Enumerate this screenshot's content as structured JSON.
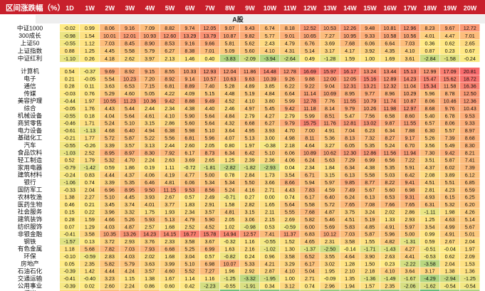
{
  "chart_data": {
    "type": "heatmap",
    "corner_label": "区间涨跌幅（%）",
    "section_label": "A股",
    "columns": [
      "1D",
      "1W",
      "2W",
      "3W",
      "4W",
      "5W",
      "6W",
      "7W",
      "8W",
      "9W",
      "10W",
      "11W",
      "12W",
      "13W",
      "14W",
      "15W",
      "16W",
      "17W",
      "18W",
      "19W",
      "20W"
    ],
    "colors": {
      "header_bg": "#c8202c",
      "header_text": "#ffffff",
      "section_bg": "#eeeeee",
      "low": "#63be7b",
      "mid": "#ffeb84",
      "high": "#f8696b"
    },
    "color_scale": [
      -8,
      0,
      20
    ],
    "index_rows": [
      {
        "name": "中证1000",
        "values": [
          -0.02,
          0.99,
          8.06,
          9.16,
          7.09,
          8.82,
          9.74,
          12.05,
          9.07,
          9.43,
          6.74,
          8.18,
          12.52,
          10.53,
          12.26,
          9.48,
          10.81,
          12.96,
          8.23,
          9.67,
          12.72
        ]
      },
      {
        "name": "300成长",
        "values": [
          -0.98,
          1.54,
          10.01,
          12.01,
          10.93,
          12.6,
          13.29,
          13.79,
          10.87,
          9.82,
          5.77,
          9.01,
          10.65,
          7.27,
          10.95,
          9.33,
          10.58,
          10.56,
          4.01,
          4.47,
          7.01
        ]
      },
      {
        "name": "上证50",
        "values": [
          -0.55,
          1.12,
          7.03,
          8.45,
          8.9,
          8.53,
          9.16,
          9.66,
          5.81,
          5.62,
          2.43,
          4.79,
          6.76,
          3.69,
          7.68,
          6.06,
          6.64,
          7.03,
          0.36,
          0.62,
          2.65
        ]
      },
      {
        "name": "上证指数",
        "values": [
          0.88,
          1.25,
          4.45,
          5.58,
          5.79,
          6.27,
          8.38,
          7.01,
          5.09,
          5.6,
          4.1,
          4.31,
          5.14,
          3.17,
          4.17,
          3.92,
          4.35,
          4.1,
          0.87,
          0.23,
          0.67
        ]
      },
      {
        "name": "中证红利",
        "values": [
          -1.1,
          0.26,
          4.18,
          2.62,
          3.97,
          2.13,
          1.46,
          0.4,
          -3.83,
          -2.09,
          -3.94,
          -2.64,
          0.49,
          -1.28,
          1.59,
          1.0,
          1.69,
          3.61,
          -2.84,
          -1.58,
          -0.24
        ]
      }
    ],
    "industry_rows": [
      {
        "name": "计算机",
        "values": [
          0.54,
          -0.37,
          9.69,
          8.92,
          9.15,
          8.55,
          10.33,
          12.93,
          12.04,
          11.86,
          14.48,
          12.78,
          16.69,
          15.97,
          16.17,
          13.24,
          13.44,
          15.13,
          12.99,
          17.09,
          20.81
        ]
      },
      {
        "name": "电子",
        "values": [
          0.21,
          -0.05,
          5.54,
          10.23,
          7.2,
          8.92,
          9.14,
          10.57,
          10.63,
          9.63,
          10.39,
          9.26,
          9.88,
          12.0,
          12.05,
          15.16,
          12.89,
          14.23,
          15.47,
          15.62,
          18.72
        ]
      },
      {
        "name": "通信",
        "values": [
          0.28,
          0.11,
          3.63,
          6.53,
          7.15,
          6.81,
          8.89,
          7.4,
          5.28,
          4.89,
          3.85,
          6.22,
          9.22,
          9.04,
          12.31,
          13.21,
          12.32,
          11.04,
          15.34,
          11.58,
          16.36
        ]
      },
      {
        "name": "传媒",
        "values": [
          -0.03,
          0.76,
          5.29,
          4.6,
          5.05,
          4.22,
          4.09,
          5.15,
          4.48,
          5.19,
          4.84,
          6.64,
          11.14,
          10.69,
          8.95,
          9.77,
          8.96,
          10.29,
          5.96,
          8.78,
          12.5
        ]
      },
      {
        "name": "美容护理",
        "values": [
          -0.44,
          1.97,
          10.55,
          11.23,
          10.36,
          9.42,
          8.88,
          9.49,
          4.52,
          4.1,
          3.8,
          5.99,
          12.78,
          7.76,
          11.55,
          10.79,
          11.74,
          10.87,
          8.06,
          10.46,
          12.36
        ]
      },
      {
        "name": "综合",
        "values": [
          -0.05,
          1.76,
          4.43,
          5.44,
          2.44,
          2.34,
          4.38,
          4.4,
          2.46,
          4.97,
          5.45,
          9.42,
          11.18,
          8.14,
          9.79,
          10.26,
          11.98,
          12.97,
          8.68,
          9.76,
          10.43
        ]
      },
      {
        "name": "机械设备",
        "values": [
          -0.55,
          0.18,
          4.04,
          5.64,
          4.61,
          4.1,
          5.9,
          5.64,
          4.84,
          2.79,
          4.27,
          2.79,
          5.99,
          8.51,
          5.47,
          7.56,
          6.58,
          8.6,
          5.4,
          6.78,
          9.53
        ]
      },
      {
        "name": "商贸零售",
        "values": [
          -0.46,
          1.71,
          5.24,
          5.1,
          3.15,
          2.86,
          5.6,
          5.64,
          4.32,
          6.68,
          6.27,
          9.79,
          15.75,
          11.76,
          12.81,
          13.02,
          9.87,
          11.55,
          6.57,
          8.06,
          9.33
        ]
      },
      {
        "name": "电力设备",
        "values": [
          -0.61,
          -1.13,
          4.68,
          6.4,
          4.94,
          6.38,
          5.98,
          5.1,
          3.64,
          4.95,
          3.93,
          4.7,
          7.0,
          4.91,
          7.04,
          6.23,
          6.34,
          7.88,
          6.3,
          5.57,
          8.97
        ]
      },
      {
        "name": "基础化工",
        "values": [
          -0.21,
          1.77,
          5.72,
          5.87,
          5.22,
          5.56,
          6.81,
          5.96,
          4.07,
          5.13,
          3.0,
          4.98,
          8.11,
          5.36,
          8.13,
          7.32,
          8.27,
          9.17,
          5.26,
          7.39,
          8.68
        ]
      },
      {
        "name": "汽车",
        "values": [
          -0.55,
          -0.26,
          3.39,
          3.57,
          3.13,
          2.44,
          2.6,
          2.05,
          0.8,
          1.97,
          -0.38,
          2.18,
          4.64,
          3.27,
          6.05,
          5.35,
          5.24,
          6.7,
          3.56,
          5.49,
          8.3
        ]
      },
      {
        "name": "食品饮料",
        "values": [
          -1.03,
          2.52,
          8.95,
          8.97,
          8.3,
          7.92,
          6.17,
          8.73,
          6.34,
          6.42,
          5.1,
          6.06,
          10.89,
          10.62,
          12.3,
          12.86,
          11.56,
          11.94,
          7.3,
          9.42,
          8.21
        ]
      },
      {
        "name": "轻工制造",
        "values": [
          0.52,
          1.79,
          5.32,
          4.7,
          2.24,
          2.63,
          3.69,
          2.65,
          1.25,
          2.39,
          2.36,
          4.06,
          6.24,
          5.63,
          7.29,
          6.99,
          6.56,
          7.22,
          3.51,
          5.87,
          7.41
        ]
      },
      {
        "name": "家用电器",
        "values": [
          -0.79,
          -1.42,
          0.59,
          1.86,
          0.19,
          1.11,
          -0.72,
          -1.81,
          -2.82,
          -1.82,
          -2.93,
          0.04,
          2.34,
          1.84,
          6.34,
          4.38,
          5.35,
          5.91,
          4.37,
          6.02,
          7.39
        ]
      },
      {
        "name": "建筑材料",
        "values": [
          -0.24,
          0.83,
          4.44,
          4.37,
          4.06,
          4.19,
          4.77,
          5.0,
          0.78,
          2.84,
          1.73,
          3.54,
          6.71,
          3.15,
          6.13,
          5.58,
          5.03,
          6.42,
          2.08,
          3.89,
          6.12
        ]
      },
      {
        "name": "银行",
        "values": [
          -1.06,
          0.74,
          3.39,
          5.35,
          6.46,
          4.81,
          6.06,
          5.34,
          5.34,
          5.5,
          3.66,
          8.66,
          5.94,
          5.97,
          9.85,
          8.77,
          8.22,
          9.41,
          4.51,
          5.51,
          6.85
        ]
      },
      {
        "name": "国防军工",
        "values": [
          -0.33,
          2.04,
          6.96,
          8.95,
          9.5,
          11.15,
          9.53,
          8.56,
          5.24,
          4.16,
          2.71,
          4.43,
          7.83,
          4.59,
          7.49,
          5.67,
          5.6,
          6.98,
          2.81,
          4.23,
          6.59
        ]
      },
      {
        "name": "农林牧渔",
        "values": [
          1.38,
          2.27,
          5.1,
          4.45,
          3.93,
          2.67,
          0.57,
          2.49,
          -0.71,
          0.27,
          0.0,
          0.74,
          6.17,
          6.4,
          6.24,
          6.13,
          6.53,
          9.31,
          4.93,
          6.15,
          6.25
        ]
      },
      {
        "name": "医药生物",
        "values": [
          0.46,
          0.21,
          3.45,
          3.74,
          4.01,
          3.77,
          1.83,
          2.91,
          1.58,
          2.82,
          1.65,
          5.64,
          5.58,
          5.72,
          7.65,
          7.08,
          7.66,
          7.65,
          6.31,
          5.32,
          6.2
        ]
      },
      {
        "name": "社会服务",
        "values": [
          0.15,
          0.22,
          3.96,
          3.32,
          1.75,
          1.93,
          2.34,
          3.57,
          4.81,
          3.15,
          2.11,
          5.55,
          7.68,
          4.87,
          3.75,
          3.24,
          2.02,
          2.86,
          -1.11,
          1.98,
          4.26
        ]
      },
      {
        "name": "建筑装饰",
        "values": [
          0.28,
          1.59,
          4.66,
          5.26,
          5.93,
          5.13,
          4.79,
          5.9,
          2.05,
          3.06,
          2.15,
          2.69,
          5.82,
          5.46,
          4.51,
          5.19,
          1.33,
          2.93,
          1.25,
          4.63,
          5.14
        ]
      },
      {
        "name": "纺织服饰",
        "values": [
          0.07,
          1.29,
          4.03,
          4.87,
          2.57,
          1.68,
          2.52,
          4.52,
          1.02,
          -0.98,
          0.53,
          -0.59,
          6.0,
          5.69,
          5.83,
          4.85,
          4.91,
          5.97,
          3.54,
          4.99,
          5.67
        ]
      },
      {
        "name": "非银金融",
        "values": [
          -0.41,
          3.58,
          10.35,
          13.26,
          14.23,
          14.15,
          16.77,
          15.78,
          14.94,
          12.57,
          7.41,
          11.37,
          6.83,
          10.12,
          7.03,
          5.87,
          5.96,
          5.0,
          0.99,
          4.91,
          5.01
        ]
      },
      {
        "name": "钢铁",
        "values": [
          -1.57,
          0.13,
          3.72,
          2.93,
          3.76,
          2.33,
          3.58,
          3.67,
          -0.32,
          1.16,
          -0.55,
          1.52,
          4.65,
          2.31,
          3.58,
          1.55,
          4.82,
          -1.31,
          0.59,
          2.67,
          2.04
        ]
      },
      {
        "name": "有色金属",
        "values": [
          1.18,
          5.68,
          7.82,
          7.03,
          7.93,
          6.68,
          5.25,
          6.99,
          1.63,
          2.16,
          -1.02,
          1.3,
          -1.37,
          -2.5,
          -0.14,
          -1.71,
          -1.43,
          4.27,
          -0.51,
          -0.04,
          1.97
        ]
      },
      {
        "name": "环保",
        "values": [
          -0.1,
          -0.59,
          2.83,
          4.03,
          2.02,
          1.68,
          3.04,
          0.57,
          -0.82,
          0.24,
          0.96,
          3.58,
          6.52,
          3.55,
          4.64,
          3.9,
          2.63,
          4.41,
          -0.53,
          0.62,
          2.09
        ]
      },
      {
        "name": "房地产",
        "values": [
          0.05,
          2.35,
          5.82,
          5.79,
          3.63,
          3.99,
          5.1,
          6.98,
          10.07,
          5.33,
          4.21,
          3.29,
          6.17,
          3.02,
          1.28,
          1.5,
          0.23,
          -2.22,
          -3.58,
          2.04,
          1.53
        ]
      },
      {
        "name": "石油石化",
        "values": [
          -0.39,
          1.42,
          4.44,
          4.24,
          3.57,
          4.6,
          5.52,
          7.27,
          1.96,
          2.92,
          2.87,
          4.1,
          5.04,
          1.95,
          2.1,
          2.18,
          4.1,
          3.64,
          3.17,
          1.38,
          1.36
        ]
      },
      {
        "name": "交通运输",
        "values": [
          -0.41,
          -0.4,
          3.23,
          1.15,
          1.38,
          1.67,
          1.14,
          1.16,
          -1.25,
          -3.32,
          -1.95,
          1.0,
          2.71,
          -0.09,
          1.35,
          -1.36,
          -1.49,
          -1.67,
          -4.29,
          -2.94,
          -1.25
        ]
      },
      {
        "name": "公用事业",
        "values": [
          -0.39,
          0.02,
          2.6,
          2.24,
          0.86,
          0.6,
          0.42,
          -2.23,
          -0.55,
          -1.91,
          0.34,
          3.12,
          0.74,
          2.96,
          1.94,
          1.57,
          2.35,
          -2.06,
          -1.62,
          -0.54,
          -0.54
        ]
      },
      {
        "name": "煤炭",
        "values": [
          1.78,
          3.59,
          6.41,
          4.94,
          4.54,
          -0.56,
          -0.38,
          -2.78,
          -7.35,
          -5.59,
          -6.34,
          -4.8,
          -2.32,
          -5.41,
          -4.55,
          -5.23,
          -5.57,
          -3.65,
          -7.81,
          -4.56,
          -4.16
        ]
      }
    ]
  }
}
